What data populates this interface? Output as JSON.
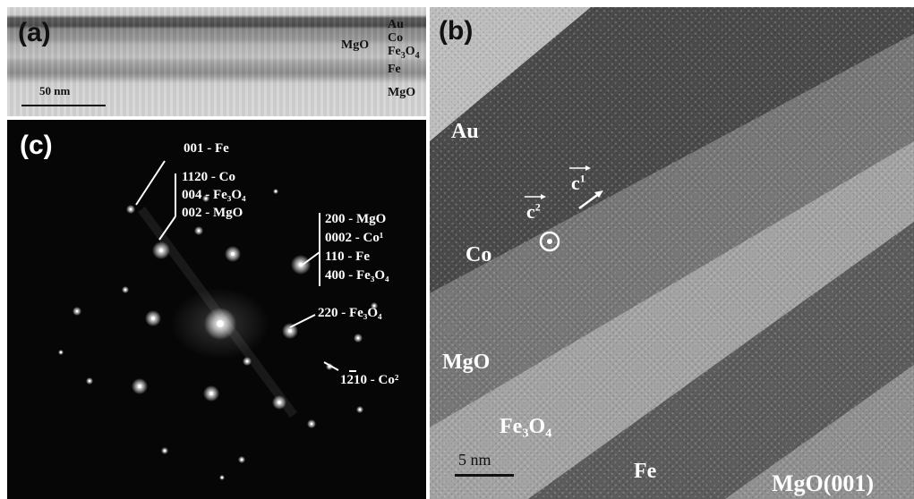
{
  "panel_a": {
    "letter": "(a)",
    "scale_bar": "50 nm",
    "layers": {
      "au": "Au",
      "co": "Co",
      "fe3o4_base": "Fe",
      "fe3o4_sub": "3",
      "fe3o4_o": "O",
      "fe3o4_sub2": "4",
      "fe": "Fe",
      "mgo_top": "MgO",
      "mgo_bottom": "MgO"
    }
  },
  "panel_b": {
    "letter": "(b)",
    "scale_bar": "5 nm",
    "labels": {
      "au": "Au",
      "co": "Co",
      "mgo": "MgO",
      "fe3o4": "Fe₃O₄",
      "fe": "Fe",
      "substrate": "MgO(001)",
      "c1": "c",
      "c1_sup": "1",
      "c2": "c",
      "c2_sup": "2"
    }
  },
  "panel_c": {
    "letter": "(c)",
    "annotations": {
      "g1": "001 - Fe",
      "g2": [
        "1120 - Co",
        "004 - Fe₃O₄",
        "002 - MgO"
      ],
      "g3": [
        "200 - MgO",
        "0002 - Co¹",
        "110 - Fe",
        "400 - Fe₃O₄"
      ],
      "g4": "220 - Fe₃O₄",
      "g5": "1210 - Co²"
    }
  },
  "colors": {
    "diffraction_bg": "#060606",
    "label_white": "#ffffff",
    "label_dark": "#111111"
  }
}
